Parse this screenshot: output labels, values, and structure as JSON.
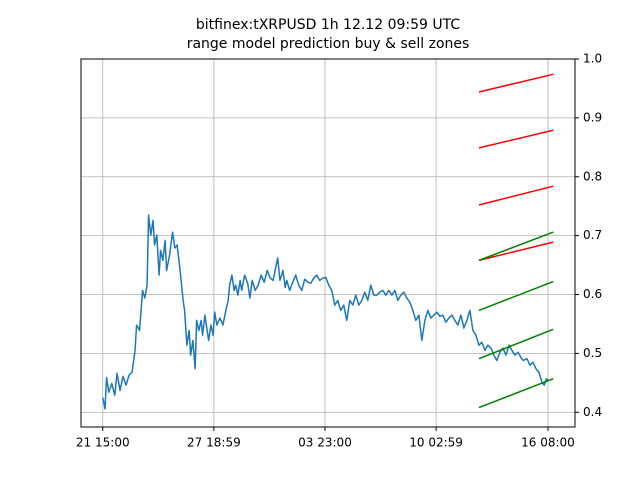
{
  "chart_data": {
    "type": "line",
    "title": "bitfinex:tXRPUSD 1h 12.12 09:59 UTC",
    "subtitle": "range model prediction buy & sell zones",
    "xlim": [
      -29,
      629
    ],
    "xticks": [
      {
        "value": 0,
        "label": "21 15:00"
      },
      {
        "value": 148,
        "label": "27 18:59"
      },
      {
        "value": 296,
        "label": "03 23:00"
      },
      {
        "value": 444,
        "label": "10 02:59"
      },
      {
        "value": 593,
        "label": "16 08:00"
      }
    ],
    "ylim": [
      0.375,
      1.0
    ],
    "yticks": [
      {
        "value": 0.4,
        "label": "0.4"
      },
      {
        "value": 0.5,
        "label": "0.5"
      },
      {
        "value": 0.6,
        "label": "0.6"
      },
      {
        "value": 0.7,
        "label": "0.7"
      },
      {
        "value": 0.8,
        "label": "0.8"
      },
      {
        "value": 0.9,
        "label": "0.9"
      },
      {
        "value": 1.0,
        "label": "1.0"
      }
    ],
    "y_axis_side": "right",
    "grid": true,
    "series": [
      {
        "color": "#1f77b4",
        "x": [
          0,
          3,
          5,
          8,
          12,
          16,
          19,
          23,
          27,
          31,
          35,
          39,
          43,
          45,
          49,
          53,
          56,
          59,
          61,
          64,
          67,
          69,
          72,
          75,
          77,
          80,
          83,
          85,
          89,
          93,
          96,
          99,
          103,
          107,
          109,
          112,
          115,
          117,
          120,
          123,
          125,
          128,
          131,
          133,
          136,
          139,
          141,
          144,
          147,
          149,
          152,
          156,
          160,
          164,
          167,
          169,
          172,
          175,
          177,
          180,
          183,
          185,
          189,
          193,
          196,
          199,
          203,
          207,
          211,
          215,
          219,
          223,
          227,
          231,
          233,
          236,
          240,
          243,
          245,
          249,
          253,
          257,
          261,
          265,
          269,
          273,
          277,
          281,
          285,
          289,
          293,
          297,
          301,
          305,
          309,
          313,
          317,
          321,
          325,
          329,
          333,
          337,
          341,
          345,
          349,
          353,
          357,
          361,
          365,
          369,
          373,
          377,
          381,
          385,
          389,
          393,
          397,
          401,
          405,
          409,
          413,
          417,
          421,
          425,
          429,
          433,
          437,
          441,
          445,
          449,
          453,
          457,
          461,
          465,
          469,
          473,
          477,
          481,
          485,
          489,
          493,
          497,
          501,
          505,
          509,
          513,
          517,
          521,
          525,
          529,
          533,
          537,
          541,
          545,
          549,
          553,
          557,
          560,
          565,
          569,
          573,
          577,
          581,
          585,
          588,
          591,
          593
        ],
        "values": [
          0.425,
          0.406,
          0.459,
          0.434,
          0.449,
          0.429,
          0.466,
          0.437,
          0.461,
          0.446,
          0.463,
          0.468,
          0.505,
          0.548,
          0.539,
          0.607,
          0.594,
          0.616,
          0.735,
          0.701,
          0.726,
          0.684,
          0.701,
          0.633,
          0.675,
          0.658,
          0.692,
          0.641,
          0.667,
          0.706,
          0.679,
          0.684,
          0.641,
          0.59,
          0.573,
          0.514,
          0.539,
          0.497,
          0.522,
          0.474,
          0.556,
          0.539,
          0.556,
          0.531,
          0.565,
          0.539,
          0.522,
          0.548,
          0.531,
          0.57,
          0.548,
          0.56,
          0.548,
          0.573,
          0.59,
          0.616,
          0.633,
          0.607,
          0.616,
          0.599,
          0.624,
          0.607,
          0.633,
          0.619,
          0.594,
          0.624,
          0.607,
          0.616,
          0.633,
          0.621,
          0.641,
          0.628,
          0.624,
          0.65,
          0.662,
          0.624,
          0.641,
          0.612,
          0.624,
          0.607,
          0.621,
          0.633,
          0.616,
          0.607,
          0.626,
          0.621,
          0.619,
          0.628,
          0.633,
          0.624,
          0.628,
          0.629,
          0.616,
          0.607,
          0.582,
          0.59,
          0.573,
          0.582,
          0.556,
          0.59,
          0.582,
          0.599,
          0.582,
          0.59,
          0.604,
          0.59,
          0.616,
          0.599,
          0.599,
          0.604,
          0.607,
          0.599,
          0.607,
          0.599,
          0.607,
          0.59,
          0.599,
          0.604,
          0.594,
          0.587,
          0.573,
          0.556,
          0.565,
          0.522,
          0.556,
          0.573,
          0.56,
          0.565,
          0.57,
          0.563,
          0.565,
          0.553,
          0.56,
          0.565,
          0.556,
          0.548,
          0.565,
          0.543,
          0.556,
          0.573,
          0.539,
          0.531,
          0.514,
          0.519,
          0.505,
          0.514,
          0.509,
          0.497,
          0.488,
          0.502,
          0.509,
          0.497,
          0.514,
          0.505,
          0.497,
          0.502,
          0.493,
          0.488,
          0.491,
          0.48,
          0.485,
          0.474,
          0.468,
          0.451,
          0.446,
          0.457,
          0.454
        ]
      },
      {
        "color": "red",
        "x": [
          501,
          600
        ],
        "values": [
          0.944,
          0.974
        ]
      },
      {
        "color": "red",
        "x": [
          501,
          600
        ],
        "values": [
          0.849,
          0.879
        ]
      },
      {
        "color": "red",
        "x": [
          501,
          600
        ],
        "values": [
          0.752,
          0.784
        ]
      },
      {
        "color": "red",
        "x": [
          501,
          600
        ],
        "values": [
          0.658,
          0.689
        ]
      },
      {
        "color": "green",
        "x": [
          501,
          600
        ],
        "values": [
          0.658,
          0.706
        ]
      },
      {
        "color": "green",
        "x": [
          501,
          600
        ],
        "values": [
          0.573,
          0.622
        ]
      },
      {
        "color": "green",
        "x": [
          501,
          600
        ],
        "values": [
          0.491,
          0.541
        ]
      },
      {
        "color": "green",
        "x": [
          501,
          600
        ],
        "values": [
          0.408,
          0.457
        ]
      }
    ]
  }
}
